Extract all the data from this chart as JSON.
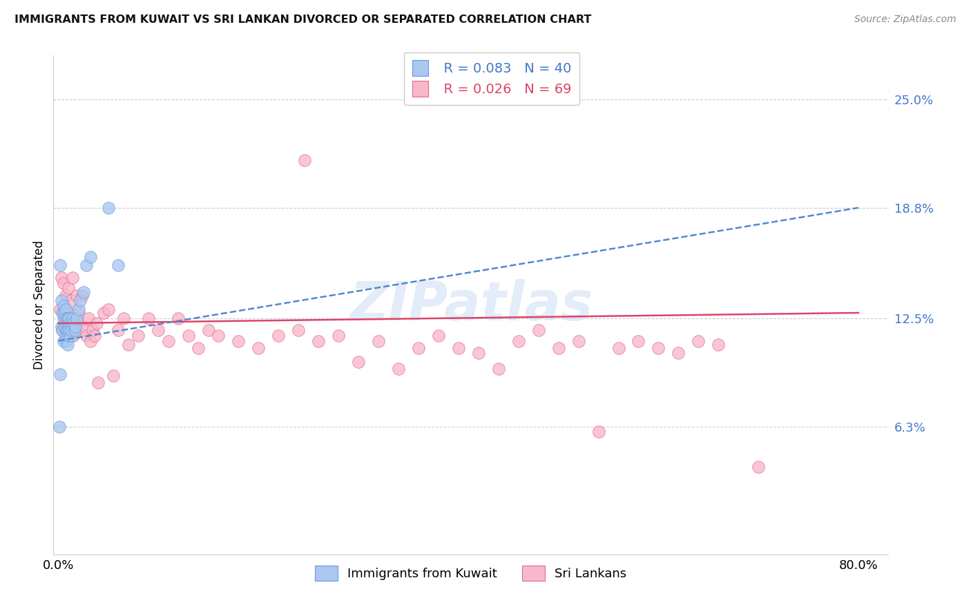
{
  "title": "IMMIGRANTS FROM KUWAIT VS SRI LANKAN DIVORCED OR SEPARATED CORRELATION CHART",
  "source": "Source: ZipAtlas.com",
  "ylabel": "Divorced or Separated",
  "ytick_vals": [
    0.063,
    0.125,
    0.188,
    0.25
  ],
  "ytick_labels": [
    "6.3%",
    "12.5%",
    "18.8%",
    "25.0%"
  ],
  "xtick_vals": [
    0.0,
    0.8
  ],
  "xtick_labels": [
    "0.0%",
    "80.0%"
  ],
  "xlim": [
    -0.005,
    0.83
  ],
  "ylim": [
    -0.01,
    0.275
  ],
  "legend_blue_r": "R = 0.083",
  "legend_blue_n": "N = 40",
  "legend_pink_r": "R = 0.026",
  "legend_pink_n": "N = 69",
  "legend_label_blue": "Immigrants from Kuwait",
  "legend_label_pink": "Sri Lankans",
  "watermark": "ZIPatlas",
  "blue_dot_color": "#aac8f0",
  "blue_edge_color": "#6699dd",
  "pink_dot_color": "#f8b8cc",
  "pink_edge_color": "#e06888",
  "blue_line_color": "#5588cc",
  "pink_line_color": "#dd4466",
  "blue_text_color": "#4477cc",
  "pink_text_color": "#dd4466",
  "blue_x": [
    0.001,
    0.002,
    0.002,
    0.003,
    0.003,
    0.004,
    0.004,
    0.005,
    0.005,
    0.005,
    0.006,
    0.006,
    0.007,
    0.007,
    0.007,
    0.008,
    0.008,
    0.008,
    0.009,
    0.009,
    0.009,
    0.01,
    0.01,
    0.011,
    0.011,
    0.012,
    0.012,
    0.013,
    0.014,
    0.015,
    0.016,
    0.017,
    0.018,
    0.02,
    0.022,
    0.025,
    0.028,
    0.032,
    0.05,
    0.06
  ],
  "blue_y": [
    0.063,
    0.093,
    0.155,
    0.12,
    0.135,
    0.118,
    0.128,
    0.112,
    0.125,
    0.132,
    0.12,
    0.128,
    0.115,
    0.122,
    0.13,
    0.112,
    0.118,
    0.125,
    0.11,
    0.118,
    0.125,
    0.115,
    0.122,
    0.118,
    0.125,
    0.115,
    0.122,
    0.118,
    0.125,
    0.122,
    0.118,
    0.12,
    0.125,
    0.13,
    0.135,
    0.14,
    0.155,
    0.16,
    0.188,
    0.155
  ],
  "pink_x": [
    0.002,
    0.003,
    0.004,
    0.005,
    0.006,
    0.007,
    0.008,
    0.009,
    0.01,
    0.011,
    0.012,
    0.013,
    0.014,
    0.015,
    0.016,
    0.018,
    0.02,
    0.022,
    0.024,
    0.026,
    0.028,
    0.03,
    0.032,
    0.034,
    0.036,
    0.038,
    0.04,
    0.045,
    0.05,
    0.055,
    0.06,
    0.065,
    0.07,
    0.08,
    0.09,
    0.1,
    0.11,
    0.12,
    0.13,
    0.14,
    0.15,
    0.16,
    0.18,
    0.2,
    0.22,
    0.24,
    0.26,
    0.28,
    0.3,
    0.32,
    0.34,
    0.36,
    0.38,
    0.4,
    0.42,
    0.44,
    0.46,
    0.48,
    0.5,
    0.52,
    0.54,
    0.56,
    0.58,
    0.6,
    0.62,
    0.64,
    0.66,
    0.7,
    0.246
  ],
  "pink_y": [
    0.13,
    0.148,
    0.118,
    0.145,
    0.125,
    0.138,
    0.122,
    0.115,
    0.142,
    0.128,
    0.118,
    0.135,
    0.148,
    0.115,
    0.125,
    0.138,
    0.128,
    0.122,
    0.138,
    0.118,
    0.115,
    0.125,
    0.112,
    0.118,
    0.115,
    0.122,
    0.088,
    0.128,
    0.13,
    0.092,
    0.118,
    0.125,
    0.11,
    0.115,
    0.125,
    0.118,
    0.112,
    0.125,
    0.115,
    0.108,
    0.118,
    0.115,
    0.112,
    0.108,
    0.115,
    0.118,
    0.112,
    0.115,
    0.1,
    0.112,
    0.096,
    0.108,
    0.115,
    0.108,
    0.105,
    0.096,
    0.112,
    0.118,
    0.108,
    0.112,
    0.06,
    0.108,
    0.112,
    0.108,
    0.105,
    0.112,
    0.11,
    0.04,
    0.215
  ],
  "blue_trend_x0": 0.0,
  "blue_trend_y0": 0.112,
  "blue_trend_x1": 0.8,
  "blue_trend_y1": 0.188,
  "pink_trend_x0": 0.0,
  "pink_trend_y0": 0.122,
  "pink_trend_x1": 0.8,
  "pink_trend_y1": 0.128
}
